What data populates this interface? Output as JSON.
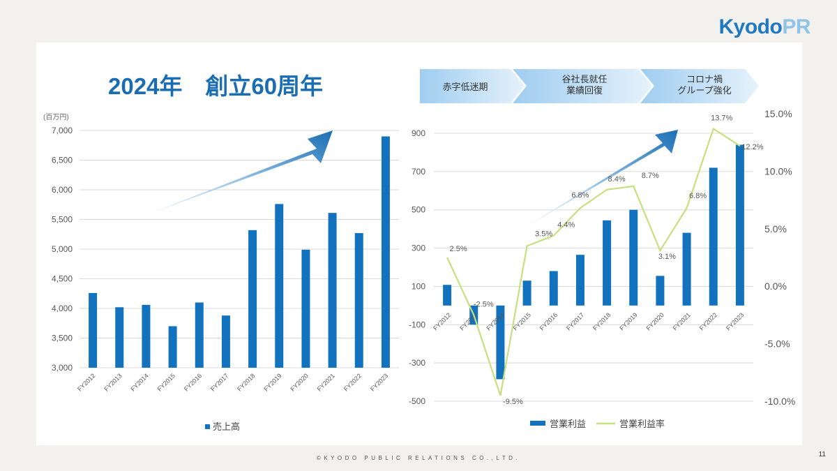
{
  "brand": {
    "logo_main": "Kyodo",
    "logo_accent": "PR"
  },
  "slide": {
    "title": "2024年　創立60周年",
    "footer": "©KYODO PUBLIC RELATIONS CO.,LTD.",
    "page_number": "11"
  },
  "phases": [
    "赤字低迷期",
    "谷社長就任\n業績回復",
    "コロナ禍\nグループ強化"
  ],
  "colors": {
    "bar": "#1272bd",
    "line": "#c8df7d",
    "title": "#1a6db3"
  },
  "chart_data": [
    {
      "type": "bar",
      "unit_label": "(百万円)",
      "categories": [
        "FY2012",
        "FY2013",
        "FY2014",
        "FY2015",
        "FY2016",
        "FY2017",
        "FY2018",
        "FY2019",
        "FY2020",
        "FY2021",
        "FY2022",
        "FY2023"
      ],
      "series": [
        {
          "name": "売上高",
          "values": [
            4260,
            4020,
            4060,
            3700,
            4100,
            3880,
            5320,
            5760,
            4990,
            5610,
            5270,
            6900
          ]
        }
      ],
      "ylim": [
        3000,
        7000
      ],
      "yticks": [
        "3,000",
        "3,500",
        "4,000",
        "4,500",
        "5,000",
        "5,500",
        "6,000",
        "6,500",
        "7,000"
      ],
      "legend": "bottom",
      "grid": true
    },
    {
      "type": "bar+line",
      "categories": [
        "FY2012",
        "FY2013",
        "FY2014",
        "FY2015",
        "FY2016",
        "FY2017",
        "FY2018",
        "FY2019",
        "FY2020",
        "FY2021",
        "FY2022",
        "FY2023"
      ],
      "series": [
        {
          "name": "営業利益",
          "type": "bar",
          "axis": "left",
          "values": [
            108,
            -100,
            -385,
            130,
            180,
            265,
            445,
            500,
            155,
            380,
            720,
            840
          ]
        },
        {
          "name": "営業利益率",
          "type": "line",
          "axis": "right",
          "values": [
            2.5,
            -2.5,
            -9.5,
            3.5,
            4.4,
            6.8,
            8.4,
            8.7,
            3.1,
            6.8,
            13.7,
            12.2
          ],
          "labels": [
            "2.5%",
            "-2.5%",
            "-9.5%",
            "3.5%",
            "4.4%",
            "6.8%",
            "8.4%",
            "8.7%",
            "3.1%",
            "6.8%",
            "13.7%",
            "12.2%"
          ]
        }
      ],
      "ylim_left": [
        -500,
        900
      ],
      "yticks_left": [
        "-500",
        "-300",
        "-100",
        "100",
        "300",
        "500",
        "700",
        "900"
      ],
      "ylim_right": [
        -10,
        15
      ],
      "yticks_right": [
        "-10.0%",
        "-5.0%",
        "0.0%",
        "5.0%",
        "10.0%",
        "15.0%"
      ],
      "legend": "bottom",
      "grid": true
    }
  ]
}
